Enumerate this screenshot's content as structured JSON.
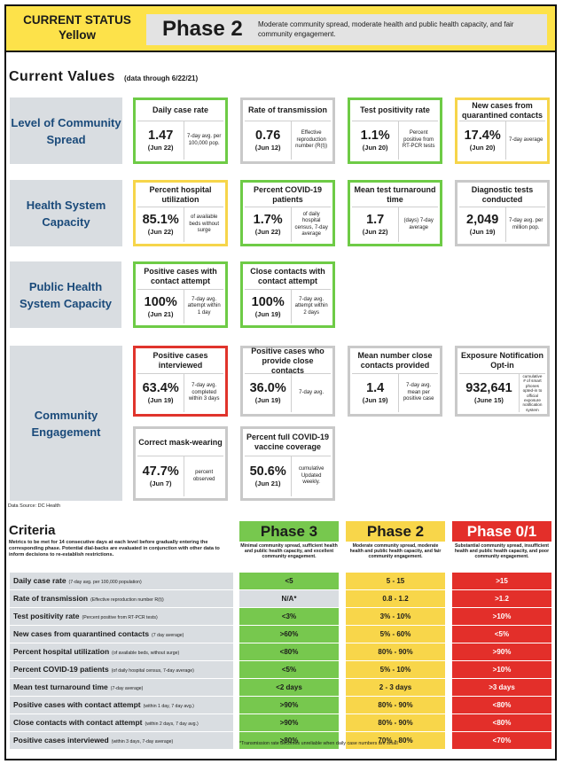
{
  "header": {
    "status_line1": "CURRENT STATUS",
    "status_line2": "Yellow",
    "phase": "Phase 2",
    "description": "Moderate community spread, moderate health and public health capacity, and fair community engagement."
  },
  "current_values": {
    "title": "Current Values",
    "subtitle": "(data through 6/22/21)"
  },
  "categories": [
    "Level of Community Spread",
    "Health System Capacity",
    "Public Health System Capacity",
    "Community Engagement"
  ],
  "cards": [
    {
      "title": "Daily case rate",
      "value": "1.47",
      "date": "(Jun 22)",
      "note": "7-day avg. per 100,000 pop.",
      "status": "green"
    },
    {
      "title": "Rate of transmission",
      "value": "0.76",
      "date": "(Jun 12)",
      "note": "Effective reproduction number (R(t))",
      "status": "gray"
    },
    {
      "title": "Test positivity rate",
      "value": "1.1%",
      "date": "(Jun 20)",
      "note": "Percent positive from RT-PCR tests",
      "status": "green"
    },
    {
      "title": "New cases from quarantined contacts",
      "value": "17.4%",
      "date": "(Jun 20)",
      "note": "7-day average",
      "status": "yellow"
    },
    {
      "title": "Percent hospital utilization",
      "value": "85.1%",
      "date": "(Jun 22)",
      "note": "of available beds without surge",
      "status": "yellow"
    },
    {
      "title": "Percent COVID-19 patients",
      "value": "1.7%",
      "date": "(Jun 22)",
      "note": "of daily hospital census, 7-day average",
      "status": "green"
    },
    {
      "title": "Mean test turnaround time",
      "value": "1.7",
      "date": "(Jun 22)",
      "note": "(days) 7-day average",
      "status": "green"
    },
    {
      "title": "Diagnostic tests conducted",
      "value": "2,049",
      "date": "(Jun 19)",
      "note": "7-day avg. per million pop.",
      "status": "gray"
    },
    {
      "title": "Positive cases with contact attempt",
      "value": "100%",
      "date": "(Jun 21)",
      "note": "7-day avg. attempt within 1 day",
      "status": "green"
    },
    {
      "title": "Close contacts with contact attempt",
      "value": "100%",
      "date": "(Jun 19)",
      "note": "7-day avg. attempt within 2 days",
      "status": "green"
    },
    {
      "title": "Positive cases interviewed",
      "value": "63.4%",
      "date": "(Jun 19)",
      "note": "7-day avg. completed within 3 days",
      "status": "red"
    },
    {
      "title": "Positive cases who provide close contacts",
      "value": "36.0%",
      "date": "(Jun 19)",
      "note": "7-day avg.",
      "status": "gray"
    },
    {
      "title": "Mean number close contacts provided",
      "value": "1.4",
      "date": "(Jun 19)",
      "note": "7-day avg. mean per positive case",
      "status": "gray"
    },
    {
      "title": "Exposure Notification Opt-in",
      "value": "932,641",
      "date": "(June 15)",
      "note": "cumulative # of smart phones opted-in to official exposure notification system",
      "status": "gray"
    },
    {
      "title": "Correct mask-wearing",
      "value": "47.7%",
      "date": "(Jun 7)",
      "note": "percent observed",
      "status": "gray"
    },
    {
      "title": "Percent full COVID-19 vaccine coverage",
      "value": "50.6%",
      "date": "(Jun 21)",
      "note": "cumulative Updated weekly.",
      "status": "gray"
    }
  ],
  "source": "Data Source: DC Health",
  "criteria": {
    "title": "Criteria",
    "subtitle": "Metrics to be met for 14 consecutive days at each level before gradually entering the corresponding phase. Potential dial-backs are evaluated in conjunction with other data to inform decisions to re-establish restrictions.",
    "phases": [
      {
        "name": "Phase 3",
        "desc": "Minimal community spread, sufficient health and public health capacity, and excellent community engagement."
      },
      {
        "name": "Phase 2",
        "desc": "Moderate community spread, moderate health and public health capacity, and fair community engagement."
      },
      {
        "name": "Phase 0/1",
        "desc": "Substantial community spread, insufficient health and public health capacity, and poor community engagement."
      }
    ],
    "rows": [
      {
        "label": "Daily case rate",
        "sub": "(7-day avg. per 100,000 population)",
        "p3": "<5",
        "p2": "5 - 15",
        "p0": ">15"
      },
      {
        "label": "Rate of transmission",
        "sub": "(Effective reproduction number R(t))",
        "p3": "N/A*",
        "p2": "0.8 - 1.2",
        "p0": ">1.2"
      },
      {
        "label": "Test positivity rate",
        "sub": "(Percent positive from RT-PCR tests)",
        "p3": "<3%",
        "p2": "3% - 10%",
        "p0": ">10%"
      },
      {
        "label": "New cases from quarantined contacts",
        "sub": "(7 day average)",
        "p3": ">60%",
        "p2": "5% - 60%",
        "p0": "<5%"
      },
      {
        "label": "Percent hospital utilization",
        "sub": "(of available beds, without surge)",
        "p3": "<80%",
        "p2": "80% - 90%",
        "p0": ">90%"
      },
      {
        "label": "Percent COVID-19 patients",
        "sub": "(of daily hospital census, 7-day average)",
        "p3": "<5%",
        "p2": "5% - 10%",
        "p0": ">10%"
      },
      {
        "label": "Mean test turnaround time",
        "sub": "(7-day average)",
        "p3": "<2 days",
        "p2": "2 - 3 days",
        "p0": ">3 days"
      },
      {
        "label": "Positive cases with contact attempt",
        "sub": "(within 1 day, 7 day avg.)",
        "p3": ">90%",
        "p2": "80% - 90%",
        "p0": "<80%"
      },
      {
        "label": "Close contacts with contact attempt",
        "sub": "(within 2 days, 7 day avg.)",
        "p3": ">90%",
        "p2": "80% - 90%",
        "p0": "<80%"
      },
      {
        "label": "Positive cases interviewed",
        "sub": "(within 3 days, 7-day average)",
        "p3": ">80%",
        "p2": "70% - 80%",
        "p0": "<70%"
      }
    ],
    "footnote": "*Transmission rate becomes unreliable when daily case numbers are small"
  },
  "colors": {
    "green": "#6ecb46",
    "yellow": "#f6d54a",
    "red": "#e0342c",
    "gray": "#c9c9c9",
    "header": "#fde24a"
  }
}
